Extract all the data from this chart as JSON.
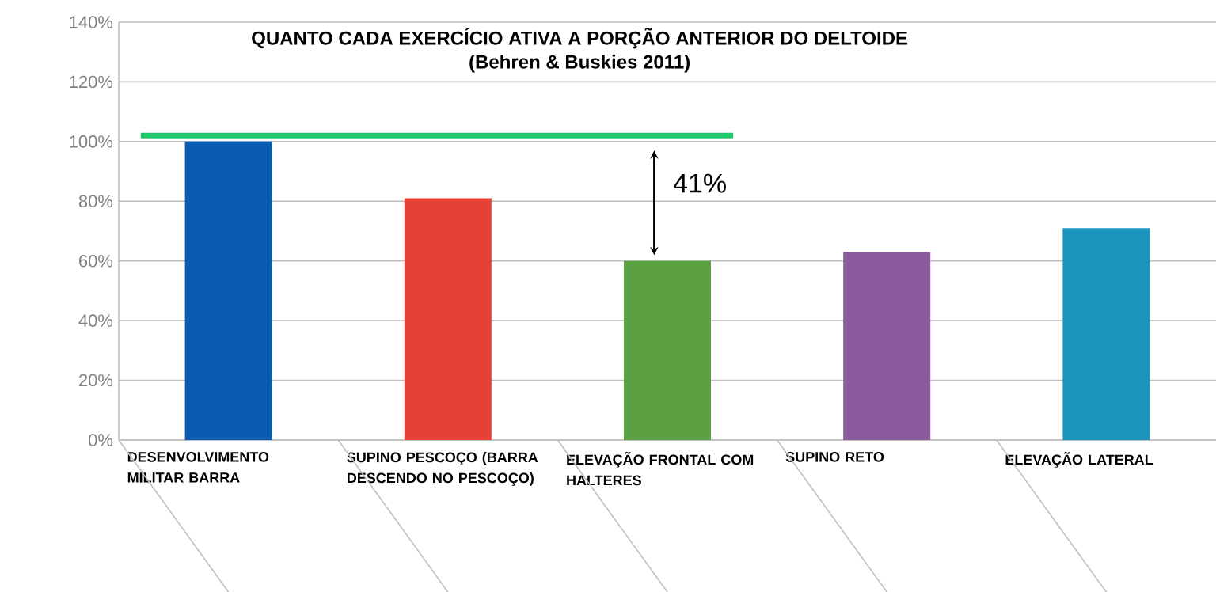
{
  "chart_data": {
    "type": "bar",
    "title": "QUANTO CADA EXERCÍCIO ATIVA A PORÇÃO ANTERIOR DO DELTOIDE",
    "subtitle": "(Behren & Buskies 2011)",
    "categories": [
      "DESENVOLVIMENTO MILITAR BARRA",
      "SUPINO PESCOÇO (BARRA DESCENDO NO PESCOÇO)",
      "ELEVAÇÃO FRONTAL COM HALTERES",
      "SUPINO RETO",
      "ELEVAÇÃO LATERAL"
    ],
    "values": [
      100,
      81,
      60,
      63,
      71
    ],
    "colors": [
      "#0a5cb0",
      "#e34234",
      "#5ba144",
      "#8a5a9c",
      "#1a93bd"
    ],
    "ylim": [
      0,
      140
    ],
    "yticks": [
      {
        "value": 0,
        "label": "0%"
      },
      {
        "value": 20,
        "label": "20%"
      },
      {
        "value": 40,
        "label": "40%"
      },
      {
        "value": 60,
        "label": "60%"
      },
      {
        "value": 80,
        "label": "80%"
      },
      {
        "value": 100,
        "label": "100%"
      },
      {
        "value": 120,
        "label": "120%"
      },
      {
        "value": 140,
        "label": "140%"
      }
    ],
    "grid": "y",
    "ref_lines": [
      {
        "axis": "y",
        "value": 102,
        "color": "#1fc86a"
      }
    ],
    "annotations": [
      "41%"
    ]
  }
}
